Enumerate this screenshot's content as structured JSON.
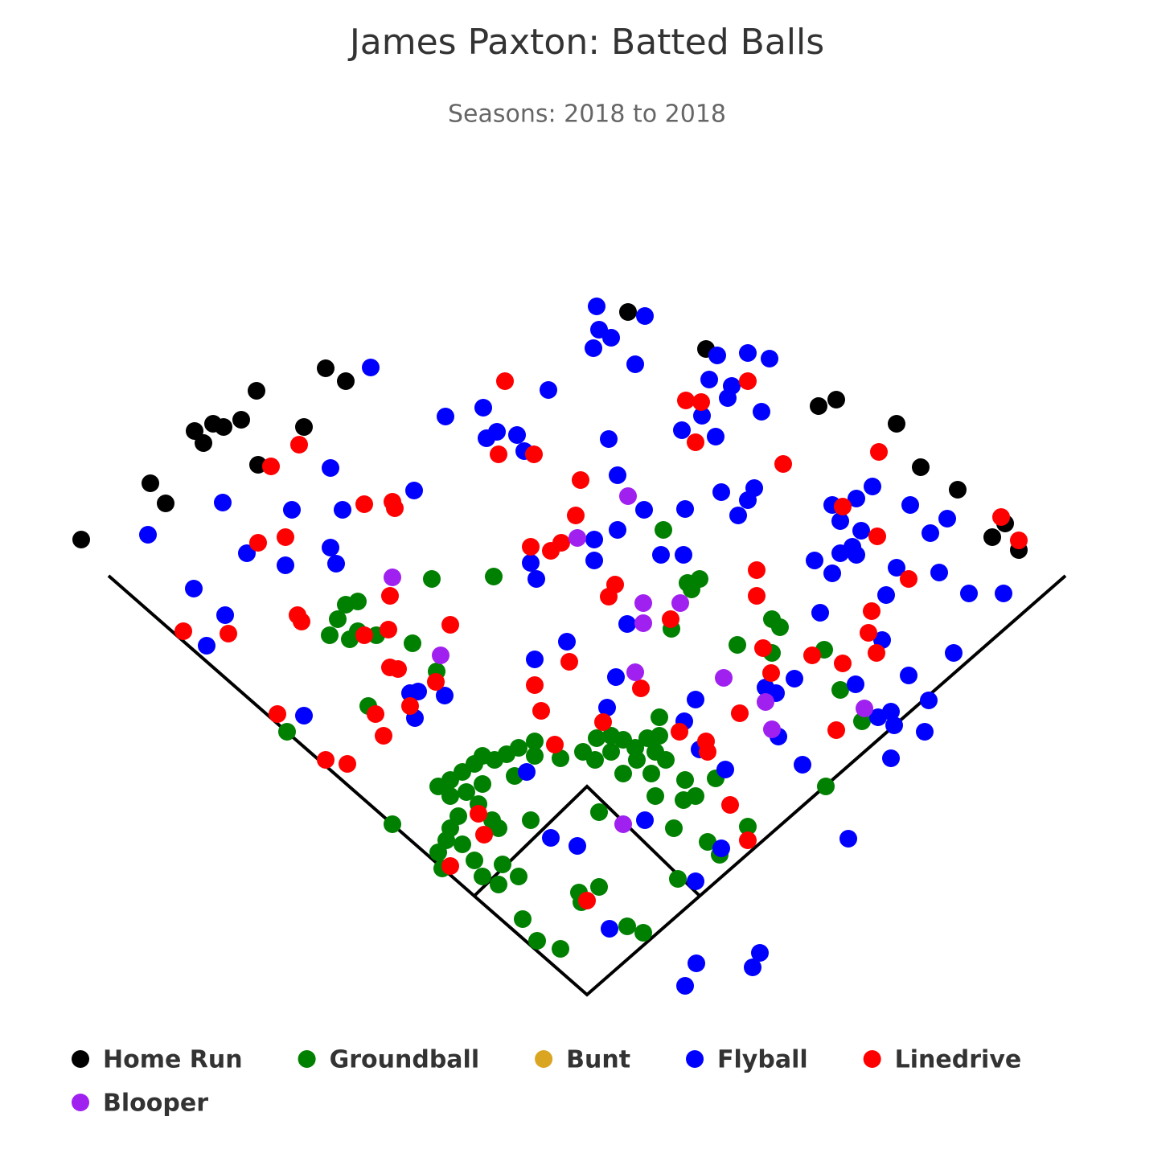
{
  "chart_data": {
    "type": "scatter",
    "title": "James Paxton: Batted Balls",
    "subtitle": "Seasons: 2018 to 2018",
    "xlim": [
      -730,
      730
    ],
    "ylim": [
      -50,
      1000
    ],
    "series": [
      {
        "name": "Home Run",
        "color": "#000000",
        "x": [
          -629,
          -543,
          -524,
          -488,
          -477,
          -465,
          -452,
          -430,
          -411,
          -409,
          -352,
          -325,
          -300,
          51,
          148,
          288,
          310,
          385,
          415,
          461,
          520,
          504,
          537
        ],
        "values": [
          566,
          636,
          611,
          701,
          686,
          710,
          706,
          715,
          751,
          659,
          706,
          779,
          763,
          849,
          803,
          732,
          740,
          710,
          656,
          628,
          586,
          569,
          553
        ]
      },
      {
        "name": "Groundball",
        "color": "#008000",
        "x": [
          95,
          -193,
          -116,
          125,
          140,
          130,
          -300,
          -285,
          -310,
          -320,
          -295,
          -285,
          -262,
          -217,
          -187,
          187,
          230,
          240,
          230,
          295,
          315,
          105,
          -272,
          -373,
          90,
          342,
          297,
          -242,
          -185,
          -170,
          -155,
          -140,
          -130,
          -115,
          -100,
          -85,
          -65,
          -170,
          -150,
          -130,
          -135,
          -160,
          -170,
          -175,
          -185,
          -180,
          -155,
          -140,
          -130,
          -110,
          -105,
          -85,
          -110,
          -118,
          -70,
          -90,
          -65,
          -33,
          -5,
          12,
          30,
          45,
          60,
          75,
          90,
          85,
          98,
          80,
          45,
          10,
          122,
          135,
          120,
          160,
          85,
          108,
          15,
          150,
          165,
          200,
          113,
          -10,
          15,
          -7,
          -80,
          -62,
          -33,
          50,
          70,
          62,
          30
        ],
        "values": [
          578,
          517,
          520,
          512,
          517,
          504,
          485,
          489,
          467,
          447,
          442,
          452,
          447,
          437,
          402,
          435,
          467,
          457,
          425,
          429,
          379,
          455,
          359,
          327,
          345,
          340,
          259,
          212,
          259,
          267,
          277,
          287,
          297,
          292,
          299,
          307,
          315,
          247,
          252,
          262,
          237,
          222,
          207,
          192,
          177,
          157,
          187,
          167,
          147,
          137,
          162,
          147,
          207,
          217,
          217,
          272,
          297,
          294,
          302,
          319,
          322,
          317,
          307,
          319,
          322,
          302,
          292,
          275,
          275,
          292,
          267,
          247,
          242,
          269,
          247,
          207,
          227,
          190,
          174,
          209,
          144,
          127,
          134,
          115,
          94,
          67,
          57,
          85,
          77,
          292,
          302
        ]
      },
      {
        "name": "Bunt",
        "color": "#daa520",
        "x": [],
        "values": []
      },
      {
        "name": "Flyball",
        "color": "#0000ff",
        "x": [
          12,
          15,
          30,
          8,
          72,
          60,
          -269,
          -48,
          -176,
          -129,
          -125,
          -112,
          -87,
          -78,
          27,
          162,
          200,
          227,
          152,
          180,
          175,
          143,
          118,
          160,
          217,
          -319,
          -215,
          -453,
          -367,
          -304,
          -546,
          -423,
          -375,
          -319,
          -312,
          -489,
          -450,
          -473,
          -352,
          38,
          71,
          122,
          38,
          9,
          9,
          92,
          120,
          -70,
          -63,
          167,
          208,
          200,
          188,
          305,
          315,
          335,
          355,
          402,
          448,
          427,
          341,
          330,
          315,
          335,
          283,
          305,
          385,
          438,
          475,
          518,
          372,
          290,
          50,
          -25,
          367,
          456,
          -65,
          36,
          258,
          400,
          334,
          235,
          222,
          135,
          425,
          -210,
          -220,
          -177,
          -214,
          25,
          121,
          378,
          362,
          382,
          420,
          140,
          238,
          268,
          378,
          -75,
          172,
          72,
          -45,
          -12,
          167,
          135,
          325,
          28,
          136,
          122,
          215,
          206
        ],
        "values": [
          856,
          827,
          817,
          804,
          844,
          784,
          780,
          752,
          719,
          730,
          692,
          700,
          696,
          676,
          691,
          795,
          798,
          791,
          765,
          757,
          742,
          720,
          702,
          694,
          725,
          655,
          627,
          612,
          603,
          603,
          572,
          549,
          534,
          556,
          536,
          505,
          472,
          434,
          347,
          646,
          603,
          604,
          578,
          566,
          540,
          547,
          547,
          537,
          517,
          625,
          630,
          615,
          596,
          609,
          589,
          617,
          632,
          609,
          592,
          574,
          577,
          557,
          549,
          547,
          540,
          524,
          531,
          525,
          499,
          499,
          497,
          475,
          461,
          439,
          441,
          425,
          417,
          395,
          393,
          397,
          386,
          375,
          382,
          367,
          366,
          377,
          375,
          372,
          344,
          357,
          340,
          352,
          345,
          335,
          327,
          305,
          321,
          286,
          294,
          277,
          280,
          217,
          195,
          185,
          182,
          141,
          194,
          82,
          39,
          11,
          52,
          34
        ]
      },
      {
        "name": "Linedrive",
        "color": "#ff0000",
        "x": [
          -102,
          -110,
          -66,
          -8,
          -14,
          123,
          142,
          135,
          200,
          244,
          363,
          -358,
          -393,
          -277,
          -242,
          -239,
          -409,
          -375,
          -70,
          -45,
          -32,
          35,
          27,
          211,
          211,
          318,
          361,
          400,
          515,
          537,
          -245,
          -170,
          -360,
          -355,
          -277,
          -247,
          -502,
          -446,
          104,
          354,
          350,
          360,
          219,
          280,
          229,
          318,
          -22,
          -65,
          67,
          -188,
          -245,
          -235,
          -57,
          -220,
          -263,
          -253,
          -385,
          -325,
          -298,
          20,
          115,
          148,
          150,
          190,
          310,
          -40,
          178,
          -135,
          -128,
          200,
          -170,
          0
        ],
        "values": [
          763,
          672,
          672,
          640,
          596,
          739,
          737,
          687,
          763,
          660,
          675,
          684,
          657,
          610,
          613,
          605,
          562,
          569,
          557,
          552,
          562,
          510,
          495,
          528,
          496,
          607,
          570,
          517,
          594,
          565,
          496,
          460,
          472,
          464,
          447,
          454,
          452,
          449,
          467,
          477,
          450,
          425,
          431,
          422,
          400,
          412,
          414,
          385,
          381,
          389,
          407,
          405,
          353,
          359,
          349,
          322,
          349,
          292,
          287,
          339,
          327,
          315,
          302,
          350,
          329,
          311,
          236,
          225,
          199,
          192,
          160,
          117
        ]
      },
      {
        "name": "Blooper",
        "color": "#a020f0",
        "x": [
          -242,
          -182,
          51,
          -12,
          70,
          70,
          116,
          60,
          170,
          222,
          230,
          45,
          345
        ],
        "values": [
          519,
          422,
          620,
          568,
          487,
          462,
          487,
          401,
          394,
          364,
          330,
          212,
          356
        ]
      }
    ]
  }
}
